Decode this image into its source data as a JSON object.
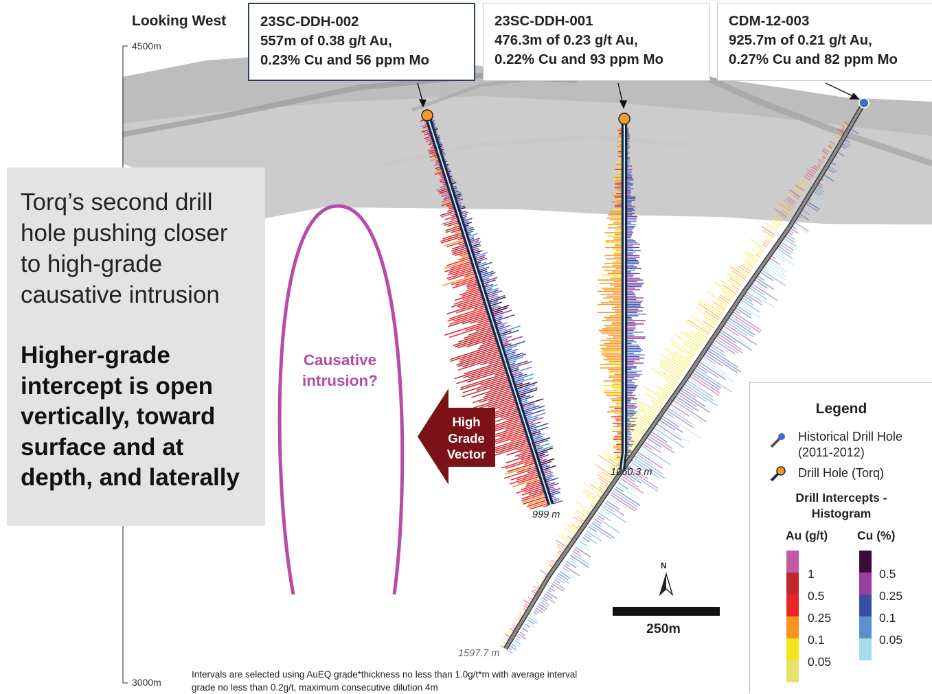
{
  "view_title": "Looking West",
  "elevations": {
    "top": "4500m",
    "bottom": "3000m"
  },
  "callouts": [
    {
      "hole": "23SC-DDH-002",
      "line1": "557m of 0.38 g/t Au,",
      "line2": "0.23% Cu and 56 ppm Mo"
    },
    {
      "hole": "23SC-DDH-001",
      "line1": "476.3m of 0.23 g/t Au,",
      "line2": "0.22% Cu and 93 ppm Mo"
    },
    {
      "hole": "CDM-12-003",
      "line1": "925.7m of 0.21 g/t Au,",
      "line2": "0.27% Cu and 82 ppm Mo"
    }
  ],
  "annotation": {
    "lines": [
      "Torq’s second drill",
      "hole pushing closer",
      "to high-grade",
      "causative intrusion"
    ],
    "bold_lines": [
      "Higher-grade",
      "intercept is open",
      "vertically, toward",
      "surface and at",
      "depth, and laterally"
    ]
  },
  "intrusion_label": [
    "Causative",
    "intrusion?"
  ],
  "vector_label": [
    "High",
    "Grade",
    "Vector"
  ],
  "depth_labels": {
    "ddh002": "999 m",
    "ddh001": "1060.3 m",
    "cdm": "1597.7 m"
  },
  "scale_bar": "250m",
  "north": "N",
  "footnote": [
    "Intervals are selected using AuEQ grade*thickness no less than 1.0g/t*m with average interval",
    "grade no less than 0.2g/t, maximum consecutive dilution 4m"
  ],
  "legend": {
    "title": "Legend",
    "historical": [
      "Historical Drill Hole",
      "(2011-2012)"
    ],
    "torq": "Drill Hole (Torq)",
    "histogram_title": [
      "Drill Intercepts -",
      "Histogram"
    ],
    "au_header": "Au (g/t)",
    "cu_header": "Cu (%)",
    "au_values": [
      "1",
      "0.5",
      "0.25",
      "0.1",
      "0.05"
    ],
    "cu_values": [
      "0.5",
      "0.25",
      "0.1",
      "0.05"
    ]
  },
  "colors": {
    "au": [
      "#c35aa5",
      "#c1272d",
      "#e8262a",
      "#f7941d",
      "#f2e51d",
      "#e6e26b"
    ],
    "cu": [
      "#3d0c3f",
      "#9b3f9e",
      "#3a4ea6",
      "#5a8fd0",
      "#a9dcea"
    ],
    "historical_marker": "#3b6fc5",
    "torq_marker": "#f39a2c",
    "intrusion": "#b94aab",
    "vector_arrow": "#7a1218"
  }
}
